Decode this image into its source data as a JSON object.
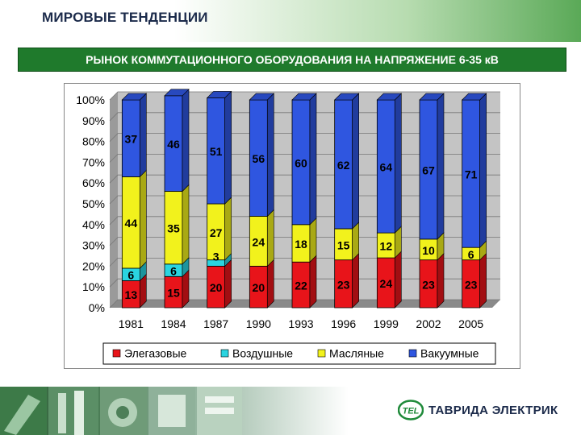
{
  "header": {
    "title": "МИРОВЫЕ ТЕНДЕНЦИИ",
    "subtitle": "РЫНОК КОММУТАЦИОННОГО ОБОРУДОВАНИЯ НА НАПРЯЖЕНИЕ 6-35 кВ"
  },
  "logo": {
    "text": "ТАВРИДА ЭЛЕКТРИК",
    "mark": "TEL"
  },
  "colors": {
    "header_text": "#1b2a4a",
    "subtitle_bg": "#1f7a2c",
    "elegaz": "#e8141a",
    "vozdush": "#2ad4e0",
    "maslyanye": "#f2f21c",
    "vakuum": "#2f56e0",
    "brand_green": "#1f8a3a"
  },
  "chart_data": {
    "type": "bar",
    "stacked": true,
    "percent": true,
    "categories": [
      "1981",
      "1984",
      "1987",
      "1990",
      "1993",
      "1996",
      "1999",
      "2002",
      "2005"
    ],
    "series": [
      {
        "name": "Элегазовые",
        "color": "#e8141a",
        "values": [
          13,
          15,
          20,
          20,
          22,
          23,
          24,
          23,
          23
        ],
        "labels": [
          "13",
          "15",
          "20",
          "20",
          "22",
          "23",
          "24",
          "23",
          "23"
        ]
      },
      {
        "name": "Воздушные",
        "color": "#2ad4e0",
        "values": [
          6,
          6,
          3,
          0,
          0,
          0,
          0,
          0,
          0
        ],
        "labels": [
          "6",
          "6",
          "3",
          "",
          "",
          "",
          "",
          "",
          ""
        ]
      },
      {
        "name": "Масляные",
        "color": "#f2f21c",
        "values": [
          44,
          35,
          27,
          24,
          18,
          15,
          12,
          10,
          6
        ],
        "labels": [
          "44",
          "35",
          "27",
          "24",
          "18",
          "15",
          "12",
          "10",
          "6"
        ]
      },
      {
        "name": "Вакуумные",
        "color": "#2f56e0",
        "values": [
          37,
          46,
          51,
          56,
          60,
          62,
          64,
          67,
          71
        ],
        "labels": [
          "37",
          "46",
          "51",
          "56",
          "60",
          "62",
          "64",
          "67",
          "71"
        ]
      }
    ],
    "y_ticks": [
      "0%",
      "10%",
      "20%",
      "30%",
      "40%",
      "50%",
      "60%",
      "70%",
      "80%",
      "90%",
      "100%"
    ],
    "ylim": [
      0,
      100
    ],
    "grid": true,
    "legend": "bottom"
  }
}
